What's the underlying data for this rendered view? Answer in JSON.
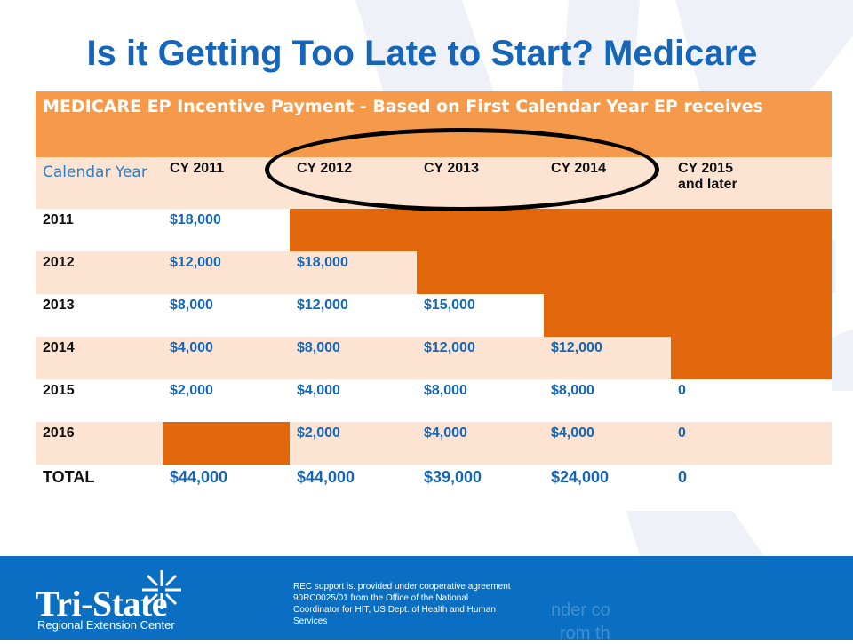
{
  "title": "Is it Getting Too Late to Start? Medicare",
  "table": {
    "header": "MEDICARE EP Incentive Payment -  Based on First Calendar Year EP receives",
    "col_label": "Calendar Year",
    "columns": [
      "CY 2011",
      "CY 2012",
      "CY 2013",
      "CY 2014",
      "CY 2015",
      "and later"
    ],
    "rows": [
      {
        "year": "2011",
        "cells": [
          "$18,000",
          "",
          "",
          "",
          ""
        ]
      },
      {
        "year": "2012",
        "cells": [
          "$12,000",
          "$18,000",
          "",
          "",
          ""
        ]
      },
      {
        "year": "2013",
        "cells": [
          "$8,000",
          "$12,000",
          "$15,000",
          "",
          ""
        ]
      },
      {
        "year": "2014",
        "cells": [
          "$4,000",
          "$8,000",
          "$12,000",
          "$12,000",
          ""
        ]
      },
      {
        "year": "2015",
        "cells": [
          "$2,000",
          "$4,000",
          "$8,000",
          "$8,000",
          "0"
        ]
      },
      {
        "year": "2016",
        "cells": [
          "",
          "$2,000",
          "$4,000",
          "$4,000",
          "0"
        ]
      }
    ],
    "total": {
      "label": "TOTAL",
      "cells": [
        "$44,000",
        "$44,000",
        "$39,000",
        "$24,000",
        "0"
      ]
    }
  },
  "footer": {
    "logo_name": "Tri-State",
    "logo_subtitle": "Regional Extension Center",
    "note_line1": "REC support is. provided under cooperative agreement",
    "note_line2": "90RC0025/01 from the Office of the National",
    "note_line3": "Coordinator for HIT, US Dept. of Health and Human",
    "note_line4": "Services",
    "ghost_text1": "nder co",
    "ghost_text2": "rom th"
  },
  "colors": {
    "title": "#1565b8",
    "header_orange": "#f59a4a",
    "dark_orange": "#e3680d",
    "light_peach": "#fde3d1",
    "footer_blue": "#0a6fc2"
  }
}
